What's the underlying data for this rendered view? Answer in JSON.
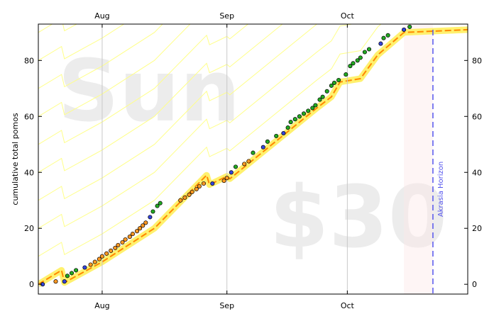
{
  "chart_data": {
    "type": "scatter",
    "ylabel": "cumulative total pomos",
    "ylim": [
      -3.5,
      93
    ],
    "yticks": [
      0,
      20,
      40,
      60,
      80
    ],
    "xlim": [
      0,
      148
    ],
    "xticks": [
      {
        "label": "Aug",
        "x": 22
      },
      {
        "label": "Sep",
        "x": 65
      },
      {
        "label": "Oct",
        "x": 106.5
      }
    ],
    "watermarks": {
      "day": "Sun",
      "pledge": "$30"
    },
    "horizon": {
      "label": "Akrasia Horizon",
      "x": 136
    },
    "today_band": [
      126,
      136
    ],
    "colors": {
      "green": "#22aa22",
      "blue": "#3344dd",
      "orange": "#ff9922",
      "road": "#ffee55",
      "road_center": "#ff8800",
      "guide": "#ffff88",
      "horizon": "#5555ee"
    },
    "road": [
      [
        0,
        0
      ],
      [
        8,
        5
      ],
      [
        9,
        0.6
      ],
      [
        22,
        8
      ],
      [
        40,
        20
      ],
      [
        58,
        39
      ],
      [
        59,
        35.6
      ],
      [
        65,
        38.6
      ],
      [
        66,
        37.7
      ],
      [
        96,
        63
      ],
      [
        101,
        67
      ],
      [
        104,
        72.3
      ],
      [
        111,
        73.5
      ],
      [
        117,
        82
      ],
      [
        126,
        90
      ],
      [
        148,
        91
      ]
    ],
    "points": [
      {
        "x": 1.5,
        "y": 0,
        "c": "blue"
      },
      {
        "x": 6,
        "y": 1,
        "c": "orange"
      },
      {
        "x": 9,
        "y": 1,
        "c": "blue"
      },
      {
        "x": 10,
        "y": 3,
        "c": "green"
      },
      {
        "x": 11.5,
        "y": 4,
        "c": "green"
      },
      {
        "x": 13,
        "y": 5,
        "c": "green"
      },
      {
        "x": 16,
        "y": 6,
        "c": "blue"
      },
      {
        "x": 18,
        "y": 7,
        "c": "orange"
      },
      {
        "x": 19.5,
        "y": 8,
        "c": "orange"
      },
      {
        "x": 21,
        "y": 9,
        "c": "orange"
      },
      {
        "x": 22,
        "y": 10,
        "c": "orange"
      },
      {
        "x": 23.5,
        "y": 11,
        "c": "orange"
      },
      {
        "x": 25,
        "y": 12,
        "c": "orange"
      },
      {
        "x": 26.5,
        "y": 13,
        "c": "orange"
      },
      {
        "x": 27.5,
        "y": 14,
        "c": "orange"
      },
      {
        "x": 29,
        "y": 15,
        "c": "orange"
      },
      {
        "x": 30,
        "y": 16,
        "c": "orange"
      },
      {
        "x": 31.5,
        "y": 17,
        "c": "orange"
      },
      {
        "x": 32.5,
        "y": 18,
        "c": "orange"
      },
      {
        "x": 34,
        "y": 19,
        "c": "orange"
      },
      {
        "x": 35,
        "y": 20,
        "c": "orange"
      },
      {
        "x": 36,
        "y": 21,
        "c": "orange"
      },
      {
        "x": 37,
        "y": 22,
        "c": "orange"
      },
      {
        "x": 38.5,
        "y": 24,
        "c": "blue"
      },
      {
        "x": 39.5,
        "y": 26,
        "c": "green"
      },
      {
        "x": 41,
        "y": 28,
        "c": "green"
      },
      {
        "x": 42,
        "y": 29,
        "c": "green"
      },
      {
        "x": 49,
        "y": 30,
        "c": "orange"
      },
      {
        "x": 50.5,
        "y": 31,
        "c": "orange"
      },
      {
        "x": 52,
        "y": 32,
        "c": "orange"
      },
      {
        "x": 53,
        "y": 33,
        "c": "orange"
      },
      {
        "x": 54.5,
        "y": 34,
        "c": "orange"
      },
      {
        "x": 55.5,
        "y": 35,
        "c": "orange"
      },
      {
        "x": 57,
        "y": 36,
        "c": "orange"
      },
      {
        "x": 60,
        "y": 36,
        "c": "blue"
      },
      {
        "x": 64,
        "y": 37,
        "c": "orange"
      },
      {
        "x": 65,
        "y": 38,
        "c": "orange"
      },
      {
        "x": 66.5,
        "y": 40,
        "c": "blue"
      },
      {
        "x": 68,
        "y": 42,
        "c": "green"
      },
      {
        "x": 71,
        "y": 43,
        "c": "orange"
      },
      {
        "x": 72.5,
        "y": 44,
        "c": "orange"
      },
      {
        "x": 74,
        "y": 47,
        "c": "green"
      },
      {
        "x": 77.5,
        "y": 49,
        "c": "blue"
      },
      {
        "x": 79,
        "y": 51,
        "c": "green"
      },
      {
        "x": 82,
        "y": 53,
        "c": "green"
      },
      {
        "x": 84.5,
        "y": 54,
        "c": "blue"
      },
      {
        "x": 86,
        "y": 56,
        "c": "green"
      },
      {
        "x": 87,
        "y": 58,
        "c": "green"
      },
      {
        "x": 88.5,
        "y": 59,
        "c": "green"
      },
      {
        "x": 90,
        "y": 60,
        "c": "green"
      },
      {
        "x": 91.5,
        "y": 61,
        "c": "green"
      },
      {
        "x": 93,
        "y": 62,
        "c": "green"
      },
      {
        "x": 94.5,
        "y": 63,
        "c": "green"
      },
      {
        "x": 95.5,
        "y": 64,
        "c": "green"
      },
      {
        "x": 97,
        "y": 66,
        "c": "green"
      },
      {
        "x": 98,
        "y": 67,
        "c": "green"
      },
      {
        "x": 99.5,
        "y": 69,
        "c": "green"
      },
      {
        "x": 101,
        "y": 71,
        "c": "green"
      },
      {
        "x": 102,
        "y": 72,
        "c": "green"
      },
      {
        "x": 103.5,
        "y": 73,
        "c": "green"
      },
      {
        "x": 106,
        "y": 75,
        "c": "green"
      },
      {
        "x": 107.5,
        "y": 78,
        "c": "green"
      },
      {
        "x": 108.5,
        "y": 79,
        "c": "green"
      },
      {
        "x": 110,
        "y": 80,
        "c": "green"
      },
      {
        "x": 111,
        "y": 81,
        "c": "green"
      },
      {
        "x": 112.5,
        "y": 83,
        "c": "green"
      },
      {
        "x": 114,
        "y": 84,
        "c": "green"
      },
      {
        "x": 118,
        "y": 86,
        "c": "blue"
      },
      {
        "x": 119,
        "y": 88,
        "c": "green"
      },
      {
        "x": 120.5,
        "y": 89,
        "c": "green"
      },
      {
        "x": 126,
        "y": 91,
        "c": "blue"
      },
      {
        "x": 128,
        "y": 92,
        "c": "green"
      }
    ]
  }
}
